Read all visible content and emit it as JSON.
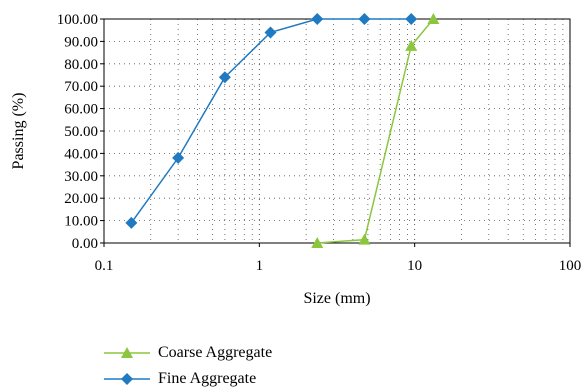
{
  "chart_data": {
    "type": "line",
    "x_scale": "log",
    "xlabel": "Size (mm)",
    "ylabel": "Passing (%)",
    "xlim": [
      0.1,
      100
    ],
    "ylim": [
      0,
      100
    ],
    "x_ticks": [
      "0.1",
      "1",
      "10",
      "100"
    ],
    "y_ticks": [
      "0.00",
      "10.00",
      "20.00",
      "30.00",
      "40.00",
      "50.00",
      "60.00",
      "70.00",
      "80.00",
      "90.00",
      "100.00"
    ],
    "grid": "dotted",
    "legend_position": "bottom",
    "series": [
      {
        "name": "Coarse Aggregate",
        "color": "#8cc63f",
        "marker": "triangle",
        "x": [
          2.36,
          4.75,
          9.5,
          13.2
        ],
        "y": [
          0,
          1.5,
          88,
          100
        ]
      },
      {
        "name": "Fine Aggregate",
        "color": "#1f7ac2",
        "marker": "diamond",
        "x": [
          0.15,
          0.3,
          0.6,
          1.18,
          2.36,
          4.75,
          9.5
        ],
        "y": [
          9,
          38,
          74,
          94,
          100,
          100,
          100
        ]
      }
    ]
  }
}
